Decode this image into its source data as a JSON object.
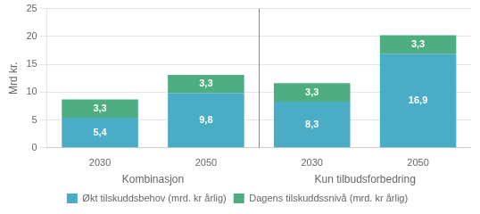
{
  "chart_data": {
    "type": "bar",
    "stacked": true,
    "categories": [
      "2030",
      "2050",
      "2030",
      "2050"
    ],
    "groups": [
      "Kombinasjon",
      "Kun tilbudsforbedring"
    ],
    "series": [
      {
        "name": "Økt tilskuddsbehov (mrd. kr årlig)",
        "color": "#4BACC6",
        "values": [
          5.4,
          9.8,
          8.3,
          16.9
        ],
        "value_labels": [
          "5,4",
          "9,8",
          "8,3",
          "16,9"
        ]
      },
      {
        "name": "Dagens tilskuddssnivå (mrd. kr årlig)",
        "color": "#4EAE82",
        "values": [
          3.3,
          3.3,
          3.3,
          3.3
        ],
        "value_labels": [
          "3,3",
          "3,3",
          "3,3",
          "3,3"
        ]
      }
    ],
    "ylabel": "Mrd kr.",
    "ylim": [
      0,
      25
    ],
    "yticks": [
      0,
      5,
      10,
      15,
      20,
      25
    ],
    "grid": true,
    "legend": "bottom",
    "data_labels": true
  }
}
